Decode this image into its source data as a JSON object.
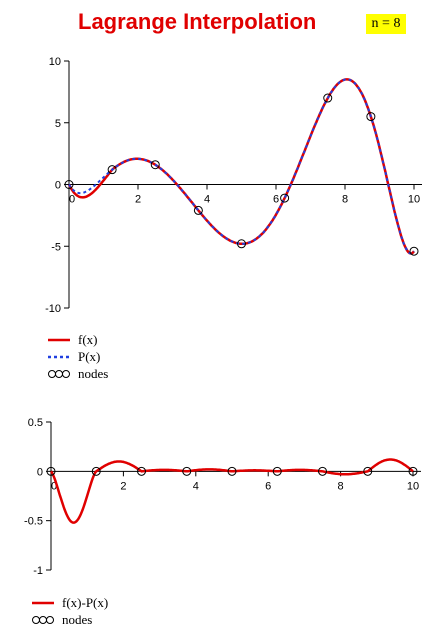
{
  "title": "Lagrange Interpolation",
  "n_label": "n = 8",
  "colors": {
    "title": "#e00000",
    "f": "#e00000",
    "P": "#2040e0",
    "badge": "#ffff00"
  },
  "chart_data": [
    {
      "type": "line",
      "title": "",
      "xlabel": "",
      "ylabel": "",
      "xlim": [
        0,
        10
      ],
      "ylim": [
        -10,
        10
      ],
      "x_ticks": [
        0,
        2,
        4,
        6,
        8,
        10
      ],
      "y_ticks": [
        -10,
        -5,
        0,
        5,
        10
      ],
      "legend_placement": "bottom-left",
      "series": [
        {
          "name": "f(x)",
          "style": "solid",
          "color": "#e00000"
        },
        {
          "name": "P(x)",
          "style": "dotted",
          "color": "#2040e0"
        },
        {
          "name": "nodes",
          "style": "circles"
        }
      ],
      "nodes": [
        {
          "x": 0,
          "y": 0
        },
        {
          "x": 1.25,
          "y": 1.2
        },
        {
          "x": 2.5,
          "y": 1.6
        },
        {
          "x": 3.75,
          "y": -2.1
        },
        {
          "x": 5.0,
          "y": -4.8
        },
        {
          "x": 6.25,
          "y": -1.1
        },
        {
          "x": 7.5,
          "y": 7.0
        },
        {
          "x": 8.75,
          "y": 5.5
        },
        {
          "x": 10.0,
          "y": -5.4
        }
      ]
    },
    {
      "type": "line",
      "title": "",
      "xlabel": "",
      "ylabel": "",
      "xlim": [
        0,
        10
      ],
      "ylim": [
        -1,
        0.5
      ],
      "x_ticks": [
        0,
        2,
        4,
        6,
        8,
        10
      ],
      "y_ticks": [
        -1,
        -0.5,
        0,
        0.5
      ],
      "legend_placement": "bottom-left",
      "series": [
        {
          "name": "f(x)-P(x)",
          "style": "solid",
          "color": "#e00000"
        },
        {
          "name": "nodes",
          "style": "circles"
        }
      ],
      "nodes": [
        {
          "x": 0,
          "y": 0
        },
        {
          "x": 1.25,
          "y": 0
        },
        {
          "x": 2.5,
          "y": 0
        },
        {
          "x": 3.75,
          "y": 0
        },
        {
          "x": 5.0,
          "y": 0
        },
        {
          "x": 6.25,
          "y": 0
        },
        {
          "x": 7.5,
          "y": 0
        },
        {
          "x": 8.75,
          "y": 0
        },
        {
          "x": 10.0,
          "y": 0
        }
      ]
    }
  ]
}
